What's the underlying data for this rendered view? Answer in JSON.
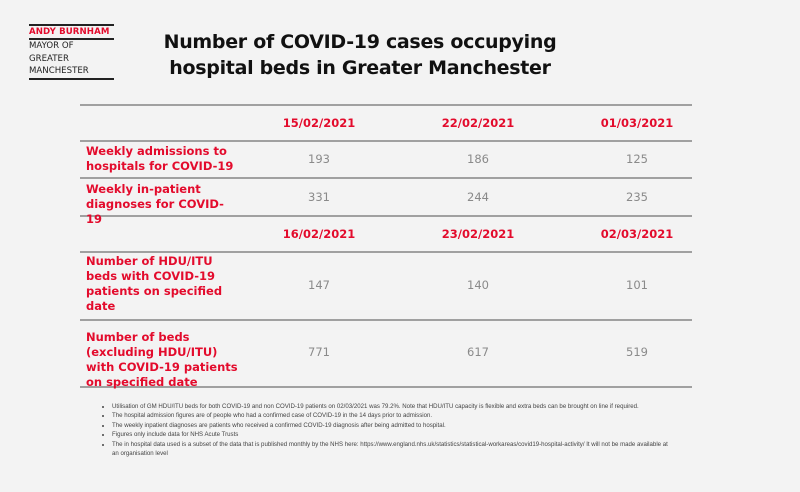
{
  "logo": {
    "name": "ANDY BURNHAM",
    "line1": "MAYOR OF",
    "line2": "GREATER",
    "line3": "MANCHESTER"
  },
  "title": "Number of COVID-19 cases occupying hospital beds in Greater Manchester",
  "table1": {
    "dates": [
      "15/02/2021",
      "22/02/2021",
      "01/03/2021"
    ],
    "rows": [
      {
        "label": "Weekly admissions to hospitals for COVID-19",
        "values": [
          "193",
          "186",
          "125"
        ]
      },
      {
        "label": "Weekly in-patient diagnoses for COVID-19",
        "values": [
          "331",
          "244",
          "235"
        ]
      }
    ]
  },
  "table2": {
    "dates": [
      "16/02/2021",
      "23/02/2021",
      "02/03/2021"
    ],
    "rows": [
      {
        "label": "Number of HDU/ITU beds with COVID-19 patients on specified date",
        "values": [
          "147",
          "140",
          "101"
        ]
      },
      {
        "label": "Number of beds (excluding HDU/ITU) with COVID-19 patients on specified date",
        "values": [
          "771",
          "617",
          "519"
        ]
      }
    ]
  },
  "notes": [
    "Utilisation of GM HDU/ITU beds for both COVID-19 and non COVID-19 patients on 02/03/2021 was 79.2%.  Note that HDU/ITU capacity is flexible and extra beds can be brought on line if required.",
    "The hospital admission figures are of people who had a confirmed case of COVID-19 in the 14 days prior to admission.",
    "The weekly inpatient diagnoses are patients who received a confirmed COVID-19 diagnosis after being admitted to hospital.",
    "Figures only include data for NHS Acute Trusts",
    "The in hospital data used is a subset of the data that is published monthly by the NHS here: https://www.england.nhs.uk/statistics/statistical-workareas/covid19-hospital-activity/ It will not be made available at an organisation level"
  ],
  "colors": {
    "accent": "#e30b2c",
    "value": "#8a8a8a",
    "rule": "#a0a0a0"
  }
}
